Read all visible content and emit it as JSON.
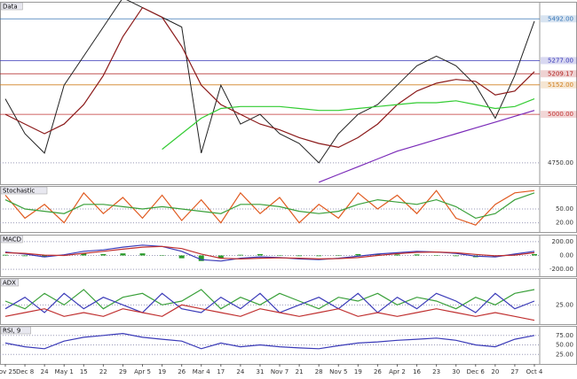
{
  "chart_data": [
    {
      "type": "line",
      "title": "Data",
      "ylim": [
        4640,
        5580
      ],
      "yticks": [
        {
          "value": 4750,
          "label": "4750.00"
        }
      ],
      "price_tags": [
        {
          "value": 5492,
          "label": "5492.00",
          "color": "#3a78b8"
        },
        {
          "value": 5277,
          "label": "5277.00",
          "color": "#3a3ab8"
        },
        {
          "value": 5209.17,
          "label": "5209.17",
          "color": "#b02020"
        },
        {
          "value": 5152,
          "label": "5152.00",
          "color": "#d08020"
        },
        {
          "value": 5000,
          "label": "5000.00",
          "color": "#c03030"
        }
      ],
      "series": [
        {
          "color": "#222222",
          "values": [
            5080,
            4900,
            4800,
            5150,
            5300,
            5450,
            5600,
            5550,
            5500,
            5450,
            4800,
            5150,
            4950,
            5000,
            4900,
            4850,
            4750,
            4900,
            5000,
            5050,
            5150,
            5250,
            5300,
            5250,
            5150,
            4980,
            5200,
            5480
          ]
        },
        {
          "color": "#8b1a1a",
          "values": [
            5000,
            4950,
            4900,
            4950,
            5050,
            5200,
            5400,
            5550,
            5500,
            5350,
            5150,
            5050,
            5000,
            4950,
            4920,
            4880,
            4850,
            4830,
            4880,
            4950,
            5050,
            5120,
            5160,
            5180,
            5170,
            5100,
            5120,
            5220
          ]
        },
        {
          "color": "#33cc33",
          "values": [
            null,
            null,
            null,
            null,
            null,
            null,
            null,
            null,
            4820,
            4900,
            4980,
            5030,
            5040,
            5040,
            5040,
            5030,
            5020,
            5020,
            5030,
            5040,
            5050,
            5060,
            5060,
            5070,
            5050,
            5030,
            5040,
            5080
          ]
        },
        {
          "color": "#7a2ab8",
          "values": [
            null,
            null,
            null,
            null,
            null,
            null,
            null,
            null,
            null,
            null,
            null,
            null,
            null,
            null,
            null,
            null,
            4650,
            4690,
            4730,
            4770,
            4810,
            4840,
            4870,
            4900,
            4930,
            4960,
            4990,
            5020
          ]
        }
      ]
    },
    {
      "type": "line",
      "title": "Stochastic",
      "ylim": [
        0,
        100
      ],
      "yticks": [
        {
          "value": 50,
          "label": "50.00"
        },
        {
          "value": 20,
          "label": "20.00"
        }
      ],
      "series": [
        {
          "color": "#e05a20",
          "values": [
            80,
            30,
            60,
            20,
            85,
            40,
            75,
            30,
            80,
            25,
            70,
            20,
            85,
            40,
            75,
            20,
            60,
            30,
            85,
            50,
            80,
            40,
            90,
            30,
            15,
            60,
            85,
            90
          ]
        },
        {
          "color": "#3aa03a",
          "values": [
            70,
            50,
            45,
            40,
            60,
            60,
            55,
            50,
            55,
            50,
            45,
            40,
            60,
            60,
            55,
            45,
            40,
            45,
            60,
            70,
            65,
            60,
            70,
            55,
            30,
            40,
            70,
            85
          ]
        }
      ]
    },
    {
      "type": "line",
      "title": "MACD",
      "ylim": [
        -300,
        300
      ],
      "yticks": [
        {
          "value": 200,
          "label": "200.00"
        },
        {
          "value": 0,
          "label": "0.00"
        },
        {
          "value": -200,
          "label": "-200.00"
        }
      ],
      "series": [
        {
          "type": "bar",
          "color": "#2a9a2a",
          "values": [
            10,
            -10,
            -25,
            10,
            30,
            20,
            30,
            30,
            0,
            -40,
            -80,
            -40,
            10,
            20,
            5,
            -10,
            -10,
            5,
            20,
            20,
            15,
            15,
            0,
            -10,
            -25,
            -15,
            15,
            20
          ]
        },
        {
          "color": "#3a3ab8",
          "values": [
            50,
            20,
            -20,
            10,
            60,
            80,
            120,
            150,
            130,
            60,
            -60,
            -80,
            -40,
            -20,
            -30,
            -50,
            -60,
            -40,
            -10,
            20,
            40,
            60,
            50,
            30,
            -10,
            -20,
            20,
            60
          ]
        },
        {
          "color": "#c03030",
          "values": [
            40,
            30,
            5,
            0,
            30,
            60,
            90,
            120,
            130,
            100,
            20,
            -40,
            -50,
            -40,
            -35,
            -40,
            -50,
            -45,
            -30,
            0,
            25,
            45,
            50,
            40,
            15,
            -5,
            5,
            40
          ]
        }
      ]
    },
    {
      "type": "line",
      "title": "ADX",
      "ylim": [
        0,
        60
      ],
      "yticks": [
        {
          "value": 25,
          "label": "25.00"
        }
      ],
      "series": [
        {
          "color": "#3aa03a",
          "values": [
            30,
            20,
            40,
            25,
            45,
            20,
            35,
            40,
            25,
            30,
            45,
            20,
            35,
            25,
            40,
            30,
            20,
            35,
            30,
            40,
            25,
            35,
            30,
            20,
            35,
            25,
            40,
            45
          ]
        },
        {
          "color": "#3a3ab8",
          "values": [
            20,
            35,
            15,
            40,
            20,
            35,
            25,
            15,
            40,
            20,
            15,
            35,
            20,
            40,
            15,
            25,
            35,
            20,
            40,
            15,
            35,
            20,
            40,
            30,
            15,
            40,
            20,
            30
          ]
        },
        {
          "color": "#c03030",
          "values": [
            10,
            15,
            20,
            10,
            15,
            10,
            20,
            15,
            10,
            25,
            20,
            15,
            10,
            20,
            15,
            10,
            15,
            20,
            10,
            15,
            10,
            15,
            20,
            15,
            10,
            15,
            10,
            5
          ]
        }
      ]
    },
    {
      "type": "line",
      "title": "RSI, 9",
      "ylim": [
        0,
        100
      ],
      "yticks": [
        {
          "value": 75,
          "label": "75.00"
        },
        {
          "value": 50,
          "label": "50.00"
        },
        {
          "value": 25,
          "label": "25.00"
        }
      ],
      "categories": [
        "Nov 25",
        "Dec 8",
        "24",
        "May 1",
        "15",
        "22",
        "29",
        "Apr 5",
        "19",
        "26",
        "Mar 4",
        "17",
        "24",
        "31",
        "Nov 7",
        "21",
        "28",
        "Nov 5",
        "19",
        "26",
        "Apr 2",
        "16",
        "23",
        "30",
        "Dec 6",
        "20",
        "27",
        "Oct 4"
      ],
      "series": [
        {
          "color": "#3a3ab8",
          "values": [
            55,
            45,
            40,
            60,
            70,
            75,
            80,
            70,
            65,
            60,
            40,
            55,
            45,
            50,
            45,
            42,
            40,
            48,
            55,
            58,
            62,
            65,
            68,
            62,
            50,
            45,
            65,
            75
          ]
        }
      ]
    }
  ]
}
